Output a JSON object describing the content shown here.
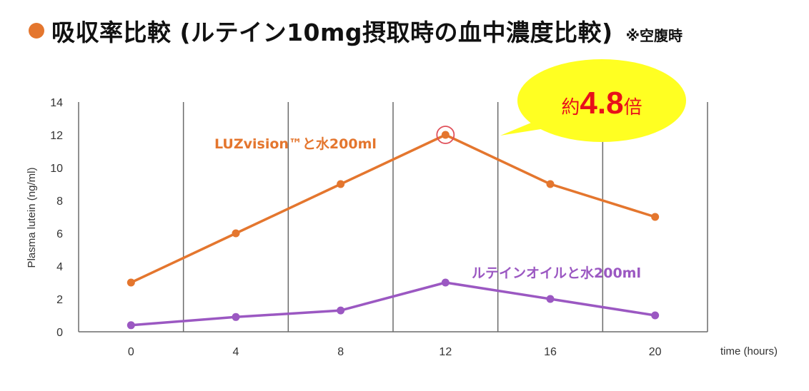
{
  "colors": {
    "orange": "#e4762e",
    "purple": "#9b58c2",
    "callout_fill": "#ffff22",
    "callout_text": "#e8101a",
    "grid": "#6b6b6b"
  },
  "title": {
    "bullet": "●",
    "text": "吸収率比較 (ルテイン10mg摂取時の血中濃度比較)",
    "note": "※空腹時"
  },
  "callout": {
    "prefix": "約",
    "value": "4.8",
    "suffix": "倍"
  },
  "chart_data": {
    "type": "line",
    "xlabel": "time (hours)",
    "ylabel": "Plasma lutein (ng/ml)",
    "x": [
      0,
      4,
      8,
      12,
      16,
      20
    ],
    "xticks": [
      "0",
      "4",
      "8",
      "12",
      "16",
      "20"
    ],
    "yticks": [
      "0",
      "2",
      "4",
      "6",
      "8",
      "10",
      "12",
      "14"
    ],
    "ylim": [
      0,
      14
    ],
    "grid": "vertical",
    "series": [
      {
        "name": "LUZvision™と水200ml",
        "color": "#e4762e",
        "values": [
          3,
          6,
          9,
          12,
          9,
          7
        ]
      },
      {
        "name": "ルテインオイルと水200ml",
        "color": "#9b58c2",
        "values": [
          0.4,
          0.9,
          1.3,
          3,
          2,
          1
        ]
      }
    ],
    "highlight": {
      "series": 0,
      "x": 12
    }
  }
}
